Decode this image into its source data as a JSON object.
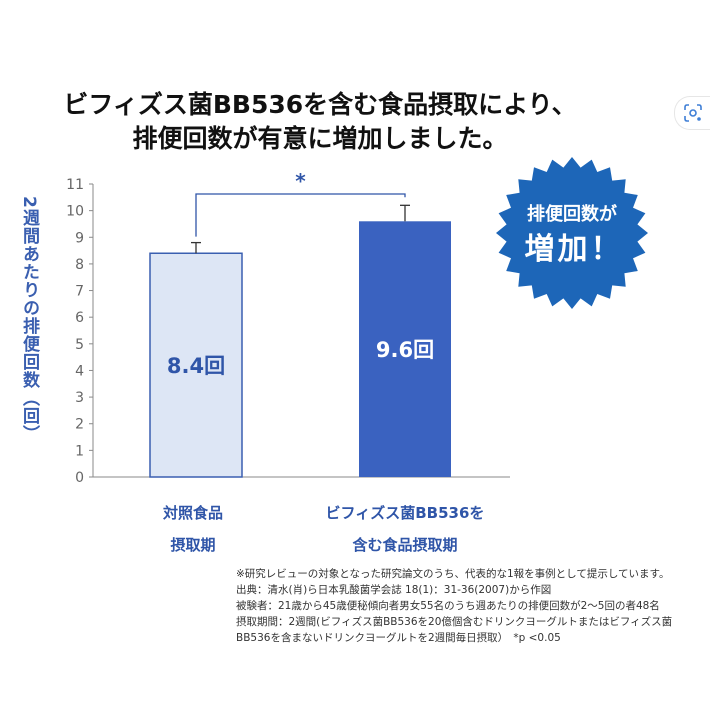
{
  "title": [
    "ビフィズス菌BB536を含む食品摂取により、",
    "排便回数が有意に増加しました。"
  ],
  "badge": [
    "排便回数が",
    "増加！"
  ],
  "notes": [
    "※研究レビューの対象となった研究論文のうち、代表的な1報を事例として提示しています。",
    "出典：清水(肖)ら日本乳酸菌学会誌 18(1)：31-36(2007)から作図",
    "被験者：21歳から45歳便秘傾向者男女55名のうち週あたりの排便回数が2～5回の者48名",
    "摂取期間：2週間(ビフィズス菌BB536を20億個含むドリンクヨーグルトまたはビフィズス菌",
    "BB536を含まないドリンクヨーグルトを2週間毎日摂取）　*p <0.05"
  ],
  "colors": {
    "control_fill": "#dde6f5",
    "control_edge": "#3a5fb0",
    "test_fill": "#3a62c0",
    "label_blue": "#2f55a8",
    "burst": "#1d66b8"
  },
  "chart_data": {
    "type": "bar",
    "categories": [
      [
        "対照食品",
        "摂取期"
      ],
      [
        "ビフィズス菌BB536を",
        "含む食品摂取期"
      ]
    ],
    "values": [
      8.4,
      9.6
    ],
    "data_labels": [
      "8.4回",
      "9.6回"
    ],
    "error_bar_tops": [
      8.8,
      10.2
    ],
    "significance": "*",
    "ylabel": "2週間あたりの排便回数（回）",
    "ylim": [
      0,
      11
    ],
    "yticks": [
      0,
      1,
      2,
      3,
      4,
      5,
      6,
      7,
      8,
      9,
      10,
      11
    ],
    "grid": false,
    "legend": "none"
  }
}
